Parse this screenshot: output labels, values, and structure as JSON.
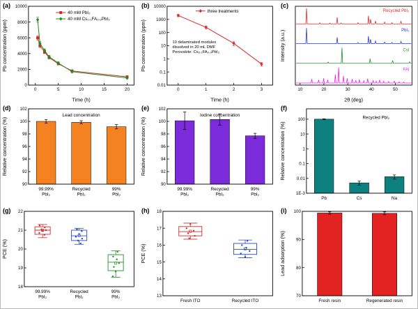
{
  "figure": {
    "background": "#ffffff",
    "border_color": "#b9b9b9"
  },
  "chart_data": [
    {
      "panel": "(a)",
      "type": "line",
      "xlabel": "Time (h)",
      "ylabel": "Pb concentration (ppm)",
      "xlim": [
        -1.5,
        21.5
      ],
      "xticks": [
        0,
        5,
        10,
        15,
        20
      ],
      "ylim": [
        0,
        10000
      ],
      "yticks": [
        0,
        2000,
        4000,
        6000,
        8000,
        10000
      ],
      "m": [
        40,
        8,
        8,
        26
      ],
      "legend": {
        "fx": 0.26,
        "fy": 0.08
      },
      "series": [
        {
          "name": "40 mM PbI₂",
          "color": "#d42a2a",
          "marker": "square",
          "x": [
            0.5,
            1,
            2,
            3,
            5,
            8,
            20
          ],
          "y": [
            6000,
            5000,
            4200,
            3500,
            2700,
            1800,
            1050
          ],
          "err": [
            280,
            230,
            200,
            180,
            150,
            130,
            100
          ]
        },
        {
          "name": "40 mM Cs₀.₁FA₀.₉PbI₃",
          "color": "#1f8c1f",
          "marker": "diamond",
          "x": [
            0.5,
            1,
            2,
            3,
            5,
            8,
            20
          ],
          "y": [
            8300,
            5300,
            4400,
            3600,
            2800,
            1700,
            900
          ],
          "err": [
            320,
            240,
            200,
            180,
            150,
            130,
            100
          ]
        }
      ]
    },
    {
      "panel": "(b)",
      "type": "line",
      "ylog": true,
      "xlabel": "Time (h)",
      "ylabel": "Pb concentration (ppm)",
      "xlim": [
        -0.4,
        3.4
      ],
      "xticks": [
        0,
        1,
        2,
        3
      ],
      "ylim": [
        0.01,
        10000
      ],
      "yticks": [
        0.01,
        0.1,
        1,
        10,
        100,
        1000,
        10000
      ],
      "ylabels": [
        "0.01",
        "0.1",
        "1",
        "10",
        "100",
        "1000",
        "10000"
      ],
      "m": [
        40,
        8,
        8,
        26
      ],
      "legend": {
        "fx": 0.27,
        "fy": 0.06
      },
      "notes": [
        {
          "fx": 0.05,
          "fy": 0.47,
          "s": 5.8,
          "lines": [
            "10 delaminated modules",
            "dissolved in 20 mL DMF",
            "Perovskite: Cs₀.₁FA₀.₉PbI₃"
          ]
        }
      ],
      "series": [
        {
          "name": "three treatments",
          "color": "#e02828",
          "marker": "diamond",
          "x": [
            0,
            1,
            2,
            3
          ],
          "y": [
            2000,
            250,
            15,
            0.4
          ],
          "err": [
            400,
            60,
            5,
            0.12
          ]
        }
      ]
    },
    {
      "panel": "(c)",
      "type": "xrd",
      "xlabel": "2θ (deg)",
      "ylabel": "Intensity (a.u.)",
      "xlim": [
        8,
        57
      ],
      "xticks": [
        10,
        20,
        30,
        40,
        50
      ],
      "ylim": [
        0,
        1
      ],
      "m": [
        24,
        8,
        8,
        26
      ],
      "traces": [
        {
          "name": "Recycled PbI₂",
          "color": "#e02525",
          "peaks": [
            [
              12.7,
              1.0
            ],
            [
              18.3,
              0.07
            ],
            [
              22.5,
              0.05
            ],
            [
              25.6,
              0.42
            ],
            [
              27.2,
              0.06
            ],
            [
              34.3,
              0.08
            ],
            [
              38.7,
              0.52
            ],
            [
              39.6,
              0.3
            ],
            [
              41.7,
              0.18
            ],
            [
              45.5,
              0.12
            ],
            [
              48.6,
              0.08
            ],
            [
              52.4,
              0.16
            ]
          ]
        },
        {
          "name": "PbI₂",
          "color": "#2635d8",
          "peaks": [
            [
              12.7,
              1.0
            ],
            [
              25.6,
              0.4
            ],
            [
              34.3,
              0.06
            ],
            [
              38.7,
              0.48
            ],
            [
              39.6,
              0.28
            ],
            [
              41.7,
              0.16
            ],
            [
              45.5,
              0.1
            ],
            [
              48.6,
              0.07
            ],
            [
              52.4,
              0.14
            ]
          ]
        },
        {
          "name": "CsI",
          "color": "#1f9122",
          "peaks": [
            [
              21.8,
              0.08
            ],
            [
              27.6,
              1.0
            ],
            [
              39.4,
              0.3
            ],
            [
              48.9,
              0.18
            ],
            [
              56.0,
              0.1
            ]
          ]
        },
        {
          "name": "FAI",
          "color": "#f21bf2",
          "peaks": [
            [
              14.9,
              0.25
            ],
            [
              17.8,
              0.2
            ],
            [
              19.9,
              0.3
            ],
            [
              21.6,
              0.2
            ],
            [
              24.8,
              0.55
            ],
            [
              26.2,
              1.0
            ],
            [
              28.2,
              0.45
            ],
            [
              29.8,
              0.3
            ],
            [
              31.9,
              0.25
            ],
            [
              33.4,
              0.18
            ],
            [
              34.9,
              0.22
            ],
            [
              36.8,
              0.15
            ],
            [
              38.4,
              0.28
            ],
            [
              40.7,
              0.18
            ],
            [
              42.0,
              0.12
            ],
            [
              43.4,
              0.2
            ],
            [
              45.1,
              0.12
            ],
            [
              47.2,
              0.1
            ],
            [
              49.6,
              0.12
            ],
            [
              51.6,
              0.08
            ],
            [
              53.5,
              0.07
            ]
          ]
        }
      ]
    },
    {
      "panel": "(d)",
      "type": "bar",
      "ylabel": "Relative concentration (%)",
      "ylim": [
        90,
        102
      ],
      "yticks": [
        90,
        92,
        94,
        96,
        98,
        100,
        102
      ],
      "m": [
        40,
        8,
        8,
        31
      ],
      "color": "#f58220",
      "categories": [
        [
          "99.99%",
          "PbI₂"
        ],
        [
          "Recycled",
          "PbI₂"
        ],
        [
          "99%",
          "PbI₂"
        ]
      ],
      "values": [
        100.0,
        99.85,
        99.15
      ],
      "errors": [
        0.3,
        0.25,
        0.35
      ],
      "notes": [
        {
          "fx": 0.5,
          "fy": 0.1,
          "a": "middle",
          "s": 6.4,
          "lines": [
            "Lead concentration"
          ]
        }
      ]
    },
    {
      "panel": "(e)",
      "type": "bar",
      "ylabel": "Relative concentration (%)",
      "ylim": [
        90,
        102
      ],
      "yticks": [
        90,
        92,
        94,
        96,
        98,
        100,
        102
      ],
      "m": [
        40,
        8,
        8,
        31
      ],
      "color": "#7c2bdb",
      "categories": [
        [
          "99.99%",
          "PbI₂"
        ],
        [
          "Recycled",
          "PbI₂"
        ],
        [
          "99%",
          "PbI₂"
        ]
      ],
      "values": [
        100.1,
        100.3,
        97.7
      ],
      "errors": [
        1.4,
        0.9,
        0.4
      ],
      "notes": [
        {
          "fx": 0.5,
          "fy": 0.1,
          "a": "middle",
          "s": 6.4,
          "lines": [
            "Iodine concentration"
          ]
        }
      ]
    },
    {
      "panel": "(f)",
      "type": "bar",
      "ylog": true,
      "ylabel": "Relative concentration (%)",
      "ylim": [
        0.001,
        500
      ],
      "yticks": [
        0.001,
        0.01,
        0.1,
        1,
        10,
        100
      ],
      "ylabels": [
        "1E-3",
        "0.01",
        "0.1",
        "1",
        "10",
        "100"
      ],
      "m": [
        40,
        8,
        8,
        18
      ],
      "color": "#0e8080",
      "categories": [
        [
          "Pb"
        ],
        [
          "Cs"
        ],
        [
          "Na"
        ]
      ],
      "values": [
        100,
        0.005,
        0.013
      ],
      "errors": [
        6,
        0.0015,
        0.004
      ],
      "notes": [
        {
          "fx": 0.66,
          "fy": 0.12,
          "a": "middle",
          "s": 6.2,
          "lines": [
            "Recycled PbI₂"
          ]
        }
      ]
    },
    {
      "panel": "(g)",
      "type": "box",
      "ylabel": "PCE (%)",
      "ylim": [
        18,
        22
      ],
      "yticks": [
        18,
        19,
        20,
        21,
        22
      ],
      "m": [
        34,
        8,
        8,
        31
      ],
      "categories": [
        [
          "99.99%",
          "PbI₂"
        ],
        [
          "Recycled",
          "PbI₂"
        ],
        [
          "99%",
          "PbI₂"
        ]
      ],
      "boxes": [
        {
          "color": "#d42a2a",
          "low": 20.6,
          "q1": 20.78,
          "med": 21.0,
          "q3": 21.18,
          "high": 21.3,
          "mean": 21.0,
          "pts": [
            [
              -0.08,
              21.25
            ],
            [
              0.06,
              21.15
            ],
            [
              -0.03,
              21.05
            ],
            [
              0.09,
              21.0
            ],
            [
              0.0,
              20.95
            ],
            [
              -0.09,
              20.85
            ],
            [
              0.05,
              20.75
            ]
          ]
        },
        {
          "color": "#2747cf",
          "low": 20.25,
          "q1": 20.45,
          "med": 20.7,
          "q3": 21.0,
          "high": 21.1,
          "mean": 20.72,
          "pts": [
            [
              -0.06,
              21.05
            ],
            [
              0.07,
              20.95
            ],
            [
              0.0,
              20.8
            ],
            [
              -0.09,
              20.65
            ],
            [
              0.08,
              20.55
            ],
            [
              -0.03,
              20.45
            ],
            [
              0.04,
              20.3
            ]
          ]
        },
        {
          "color": "#1f9122",
          "low": 18.5,
          "q1": 18.85,
          "med": 19.3,
          "q3": 19.7,
          "high": 19.9,
          "mean": 19.25,
          "pts": [
            [
              0.05,
              19.85
            ],
            [
              -0.07,
              19.6
            ],
            [
              0.03,
              19.45
            ],
            [
              0.09,
              19.25
            ],
            [
              -0.05,
              19.05
            ],
            [
              0.0,
              18.8
            ],
            [
              -0.08,
              18.55
            ]
          ]
        }
      ]
    },
    {
      "panel": "(h)",
      "type": "box",
      "ylabel": "PCE (%)",
      "ylim": [
        13,
        18
      ],
      "yticks": [
        13,
        14,
        15,
        16,
        17,
        18
      ],
      "m": [
        34,
        8,
        8,
        18
      ],
      "categories": [
        [
          "Fresh ITO"
        ],
        [
          "Recycled ITO"
        ]
      ],
      "boxes": [
        {
          "color": "#d42a2a",
          "low": 16.35,
          "q1": 16.55,
          "med": 16.8,
          "q3": 17.1,
          "high": 17.3,
          "mean": 16.82,
          "pts": [
            [
              0.0,
              17.25
            ],
            [
              -0.07,
              17.0
            ],
            [
              0.06,
              16.85
            ],
            [
              -0.04,
              16.7
            ],
            [
              0.08,
              16.55
            ],
            [
              -0.02,
              16.4
            ]
          ]
        },
        {
          "color": "#2747cf",
          "low": 15.25,
          "q1": 15.45,
          "med": 15.75,
          "q3": 16.1,
          "high": 16.3,
          "mean": 15.78,
          "pts": [
            [
              0.04,
              16.25
            ],
            [
              -0.06,
              16.0
            ],
            [
              0.02,
              15.85
            ],
            [
              0.08,
              15.65
            ],
            [
              -0.08,
              15.5
            ],
            [
              0.0,
              15.3
            ]
          ]
        }
      ]
    },
    {
      "panel": "(i)",
      "type": "bar",
      "ylabel": "Lead adsorption (%)",
      "ylim": [
        70,
        100
      ],
      "yticks": [
        70,
        80,
        90,
        100
      ],
      "m": [
        34,
        8,
        8,
        18
      ],
      "color": "#e32222",
      "bw": 0.45,
      "categories": [
        [
          "Fresh resin"
        ],
        [
          "Regenerated resin"
        ]
      ],
      "values": [
        99.4,
        99.3
      ],
      "errors": [
        0.4,
        0.5
      ]
    }
  ]
}
